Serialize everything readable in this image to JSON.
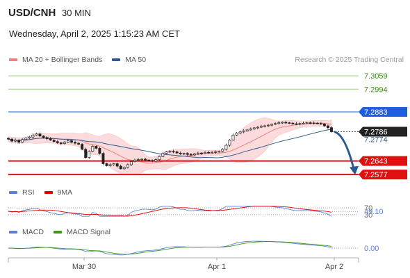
{
  "header": {
    "symbol": "USD/CNH",
    "timeframe": "30 MIN",
    "datetime": "Wednesday, April 2, 2025 1:15:23 AM CET"
  },
  "legend_main": [
    {
      "label": "MA 20 + Bollinger Bands",
      "color": "#f08080"
    },
    {
      "label": "MA 50",
      "color": "#2d5a8e"
    }
  ],
  "watermark": "Research © 2025 Trading Central",
  "legend_rsi": [
    {
      "label": "RSI",
      "color": "#5b7fd6"
    },
    {
      "label": "9MA",
      "color": "#dd0000"
    }
  ],
  "legend_macd": [
    {
      "label": "MACD",
      "color": "#5b7fd6"
    },
    {
      "label": "MACD Signal",
      "color": "#3a9a1a"
    }
  ],
  "colors": {
    "resistance_green": "#9ccc7a",
    "pivot_blue": "#1e5fe0",
    "support_red": "#e01010",
    "bollinger_fill": "#fbd5d5",
    "candle": "#222222",
    "projection_arrow": "#2d5a8e"
  },
  "chart_data": {
    "type": "candlestick",
    "price_range": [
      7.254,
      7.309
    ],
    "x_labels": [
      "Mar 30",
      "Apr 1",
      "Apr 2"
    ],
    "levels": [
      {
        "value": 7.3059,
        "label": "7.3059",
        "kind": "resistance"
      },
      {
        "value": 7.2994,
        "label": "7.2994",
        "kind": "resistance"
      },
      {
        "value": 7.2883,
        "label": "7.2883",
        "kind": "pivot"
      },
      {
        "value": 7.2643,
        "label": "7.2643",
        "kind": "support"
      },
      {
        "value": 7.2577,
        "label": "7.2577",
        "kind": "support"
      }
    ],
    "current_price": {
      "value": 7.2786,
      "label": "7.2786"
    },
    "ma50_last": {
      "value": 7.2774,
      "label": "7.2774"
    },
    "closes": [
      7.275,
      7.274,
      7.2745,
      7.2735,
      7.2748,
      7.2755,
      7.276,
      7.277,
      7.2775,
      7.2765,
      7.2758,
      7.2752,
      7.2745,
      7.2738,
      7.2732,
      7.2728,
      7.2735,
      7.2742,
      7.2735,
      7.273,
      7.2725,
      7.27,
      7.266,
      7.269,
      7.2715,
      7.2705,
      7.268,
      7.263,
      7.262,
      7.2625,
      7.263,
      7.2618,
      7.2605,
      7.2612,
      7.2625,
      7.264,
      7.2648,
      7.265,
      7.2652,
      7.2648,
      7.2645,
      7.2642,
      7.265,
      7.2665,
      7.268,
      7.2688,
      7.269,
      7.2688,
      7.2682,
      7.2678,
      7.268,
      7.2675,
      7.2673,
      7.2678,
      7.2682,
      7.268,
      7.2685,
      7.2684,
      7.2686,
      7.2688,
      7.269,
      7.27,
      7.272,
      7.2745,
      7.277,
      7.278,
      7.2785,
      7.279,
      7.2795,
      7.28,
      7.2805,
      7.2808,
      7.2812,
      7.2815,
      7.2818,
      7.2822,
      7.2826,
      7.283,
      7.2832,
      7.283,
      7.2828,
      7.2825,
      7.2824,
      7.2826,
      7.2828,
      7.283,
      7.2829,
      7.2828,
      7.2827,
      7.2824,
      7.2815,
      7.2806,
      7.2786
    ],
    "rsi": {
      "levels": [
        70,
        30
      ],
      "last": 49.1,
      "last_label": "49.10",
      "level_labels": [
        "70",
        "30"
      ]
    },
    "macd": {
      "zero_label": "0.00"
    }
  }
}
